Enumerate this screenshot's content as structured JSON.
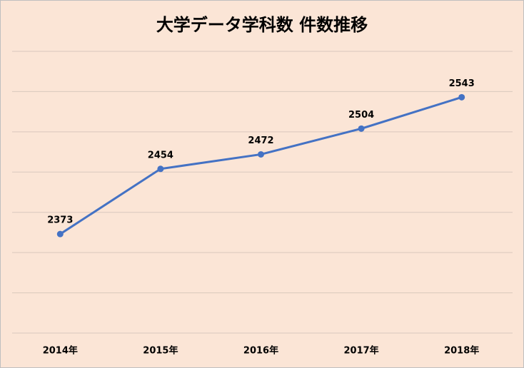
{
  "chart_data": {
    "type": "line",
    "title": "大学データ学科数 件数推移",
    "categories": [
      "2014年",
      "2015年",
      "2016年",
      "2017年",
      "2018年"
    ],
    "values": [
      2373,
      2454,
      2472,
      2504,
      2543
    ],
    "color": "#4472c4",
    "ylim": [
      2250,
      2600
    ],
    "yticks": [
      2250,
      2300,
      2350,
      2400,
      2450,
      2500,
      2550,
      2600
    ],
    "grid": true,
    "ytick_labels": false,
    "data_labels": true
  }
}
